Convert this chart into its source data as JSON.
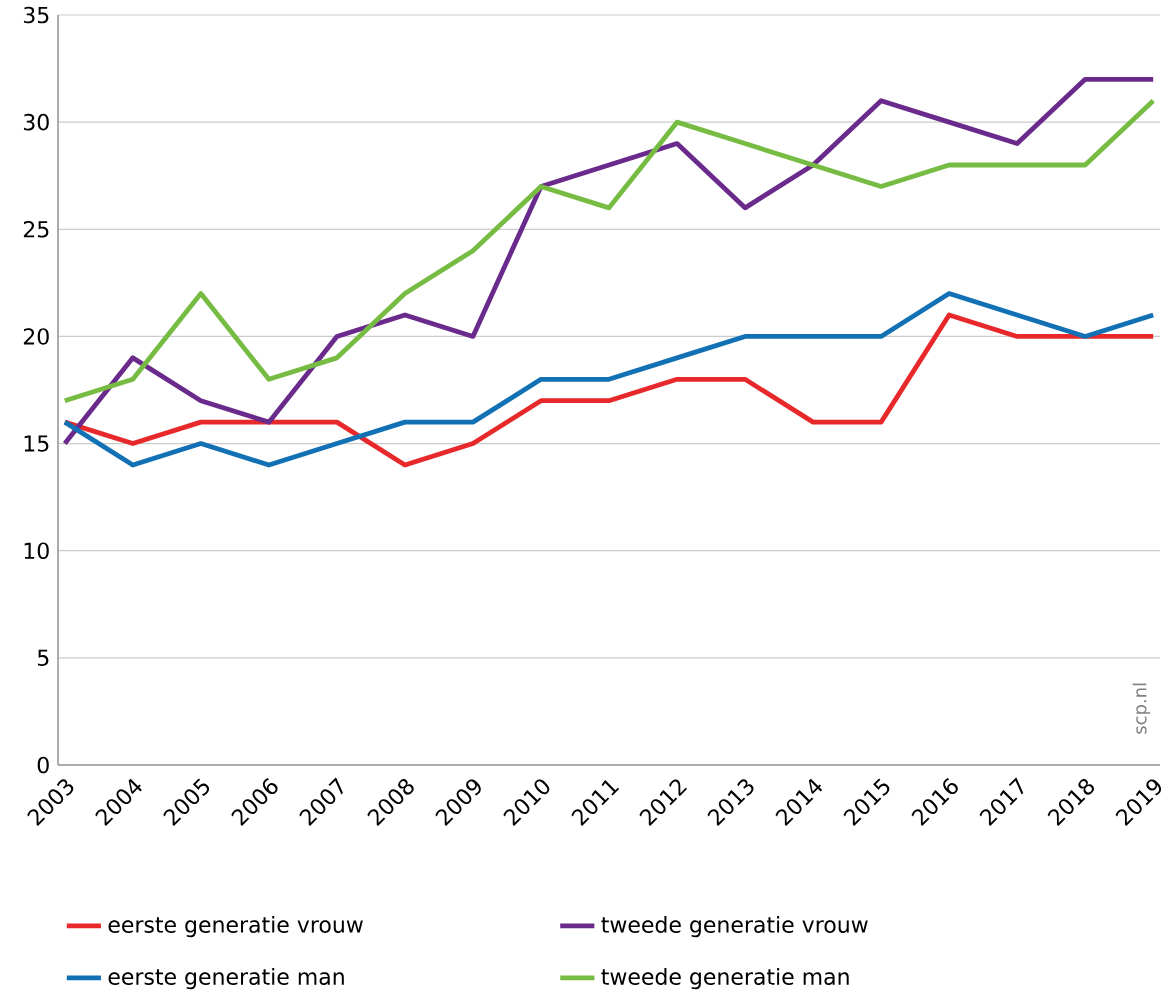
{
  "chart_data": {
    "type": "line",
    "categories": [
      "2003",
      "2004",
      "2005",
      "2006",
      "2007",
      "2008",
      "2009",
      "2010",
      "2011",
      "2012",
      "2013",
      "2014",
      "2015",
      "2016",
      "2017",
      "2018",
      "2019"
    ],
    "series": [
      {
        "name": "eerste generatie vrouw",
        "color": "#e8292b",
        "values": [
          16,
          15,
          16,
          16,
          16,
          14,
          15,
          17,
          17,
          18,
          18,
          16,
          16,
          21,
          20,
          20,
          20
        ]
      },
      {
        "name": "tweede generatie vrouw",
        "color": "#6a2a8c",
        "values": [
          15,
          19,
          17,
          16,
          20,
          21,
          20,
          27,
          28,
          29,
          26,
          28,
          31,
          30,
          29,
          32,
          32
        ]
      },
      {
        "name": "eerste generatie man",
        "color": "#1271b5",
        "values": [
          16,
          14,
          15,
          14,
          15,
          16,
          16,
          18,
          18,
          19,
          20,
          20,
          20,
          22,
          21,
          20,
          21
        ]
      },
      {
        "name": "tweede generatie man",
        "color": "#76bc43",
        "values": [
          17,
          18,
          22,
          18,
          19,
          22,
          24,
          27,
          26,
          30,
          29,
          28,
          27,
          28,
          28,
          28,
          31
        ]
      }
    ],
    "ylim": [
      0,
      35
    ],
    "yticks": [
      0,
      5,
      10,
      15,
      20,
      25,
      30,
      35
    ],
    "grid": "y",
    "legend": "bottom",
    "marker": "none",
    "line_style": "solid",
    "annotations": [
      "scp.nl"
    ]
  }
}
